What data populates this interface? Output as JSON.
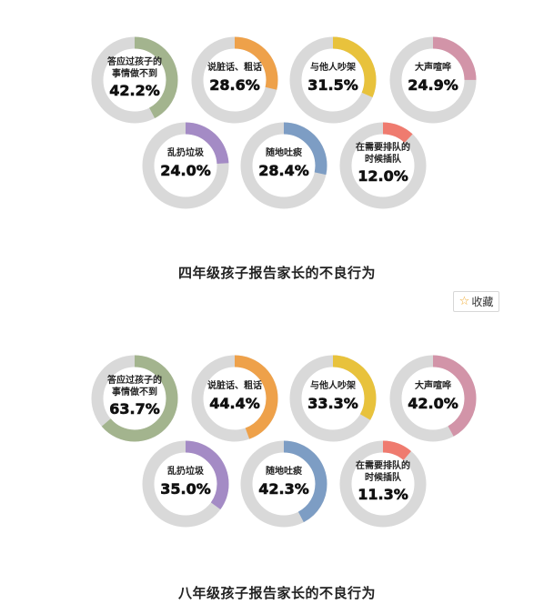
{
  "chart_data": [
    {
      "type": "donut",
      "title": "四年级孩子报告家长的不良行为",
      "items": [
        {
          "label": [
            "答应过孩子的",
            "事情做不到"
          ],
          "value": 42.2,
          "display": "42.2%",
          "color": "#a3b48e"
        },
        {
          "label": [
            "说脏话、粗话"
          ],
          "value": 28.6,
          "display": "28.6%",
          "color": "#eea14a"
        },
        {
          "label": [
            "与他人吵架"
          ],
          "value": 31.5,
          "display": "31.5%",
          "color": "#e8c23c"
        },
        {
          "label": [
            "大声喧哗"
          ],
          "value": 24.9,
          "display": "24.9%",
          "color": "#d294a8"
        },
        {
          "label": [
            "乱扔垃圾"
          ],
          "value": 24.0,
          "display": "24.0%",
          "color": "#a48bc5"
        },
        {
          "label": [
            "随地吐痰"
          ],
          "value": 28.4,
          "display": "28.4%",
          "color": "#7d9dc4"
        },
        {
          "label": [
            "在需要排队的",
            "时候插队"
          ],
          "value": 12.0,
          "display": "12.0%",
          "color": "#ef7b6f"
        }
      ]
    },
    {
      "type": "donut",
      "title": "八年级孩子报告家长的不良行为",
      "items": [
        {
          "label": [
            "答应过孩子的",
            "事情做不到"
          ],
          "value": 63.7,
          "display": "63.7%",
          "color": "#a3b48e"
        },
        {
          "label": [
            "说脏话、粗话"
          ],
          "value": 44.4,
          "display": "44.4%",
          "color": "#eea14a"
        },
        {
          "label": [
            "与他人吵架"
          ],
          "value": 33.3,
          "display": "33.3%",
          "color": "#e8c23c"
        },
        {
          "label": [
            "大声喧哗"
          ],
          "value": 42.0,
          "display": "42.0%",
          "color": "#d294a8"
        },
        {
          "label": [
            "乱扔垃圾"
          ],
          "value": 35.0,
          "display": "35.0%",
          "color": "#a48bc5"
        },
        {
          "label": [
            "随地吐痰"
          ],
          "value": 42.3,
          "display": "42.3%",
          "color": "#7d9dc4"
        },
        {
          "label": [
            "在需要排队的",
            "时候插队"
          ],
          "value": 11.3,
          "display": "11.3%",
          "color": "#ef7b6f"
        }
      ]
    }
  ],
  "ui": {
    "favorite_label": "收藏",
    "favorite_icon": "star-outline-icon"
  },
  "colors": {
    "ring_track": "#d9d9d9",
    "text": "#111111"
  }
}
